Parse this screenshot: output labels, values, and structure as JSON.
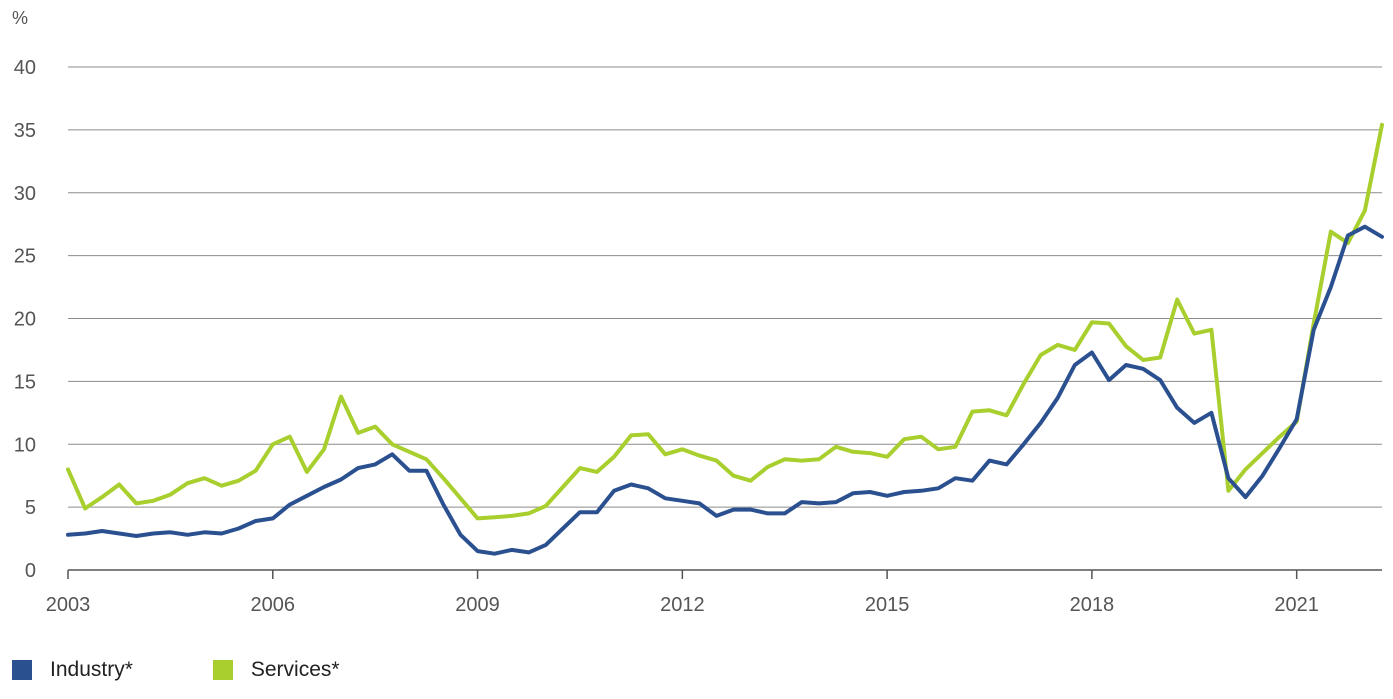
{
  "chart_data": {
    "type": "line",
    "unit_label": "%",
    "ylim": [
      0,
      40
    ],
    "yticks": [
      "0",
      "5",
      "10",
      "15",
      "20",
      "25",
      "30",
      "35",
      "40"
    ],
    "xlim": [
      2003.0,
      2022.25
    ],
    "xticks": [
      "2003",
      "2006",
      "2009",
      "2012",
      "2015",
      "2018",
      "2021"
    ],
    "grid": true,
    "legend_position": "bottom-left",
    "series": [
      {
        "name": "Industry*",
        "color": "#2b5090",
        "values": [
          2.8,
          2.9,
          3.1,
          2.9,
          2.7,
          2.9,
          3.0,
          2.8,
          3.0,
          2.9,
          3.3,
          3.9,
          4.1,
          5.2,
          5.9,
          6.6,
          7.2,
          8.1,
          8.4,
          9.2,
          7.9,
          7.9,
          5.2,
          2.8,
          1.5,
          1.3,
          1.6,
          1.4,
          2.0,
          3.3,
          4.6,
          4.6,
          6.3,
          6.8,
          6.5,
          5.7,
          5.5,
          5.3,
          4.3,
          4.8,
          4.8,
          4.5,
          4.5,
          5.4,
          5.3,
          5.4,
          6.1,
          6.2,
          5.9,
          6.2,
          6.3,
          6.5,
          7.3,
          7.1,
          8.7,
          8.4,
          10.0,
          11.7,
          13.7,
          16.3,
          17.3,
          15.1,
          16.3,
          16.0,
          15.1,
          12.9,
          11.7,
          12.5,
          7.3,
          5.8,
          7.5,
          9.7,
          12.0,
          19.1,
          22.5,
          26.6,
          27.3,
          26.5
        ]
      },
      {
        "name": "Services*",
        "color": "#a8cf2e",
        "values": [
          8.0,
          4.9,
          5.8,
          6.8,
          5.3,
          5.5,
          6.0,
          6.9,
          7.3,
          6.7,
          7.1,
          7.9,
          10.0,
          10.6,
          7.8,
          9.6,
          13.8,
          10.9,
          11.4,
          10.0,
          9.4,
          8.8,
          7.3,
          5.7,
          4.1,
          4.2,
          4.3,
          4.5,
          5.1,
          6.6,
          8.1,
          7.8,
          9.0,
          10.7,
          10.8,
          9.2,
          9.6,
          9.1,
          8.7,
          7.5,
          7.1,
          8.2,
          8.8,
          8.7,
          8.8,
          9.8,
          9.4,
          9.3,
          9.0,
          10.4,
          10.6,
          9.6,
          9.8,
          12.6,
          12.7,
          12.3,
          14.8,
          17.1,
          17.9,
          17.5,
          19.7,
          19.6,
          17.8,
          16.7,
          16.9,
          21.5,
          18.8,
          19.1,
          6.3,
          8.0,
          9.3,
          10.6,
          11.8,
          19.6,
          26.9,
          26.0,
          28.6,
          35.4
        ]
      }
    ]
  }
}
